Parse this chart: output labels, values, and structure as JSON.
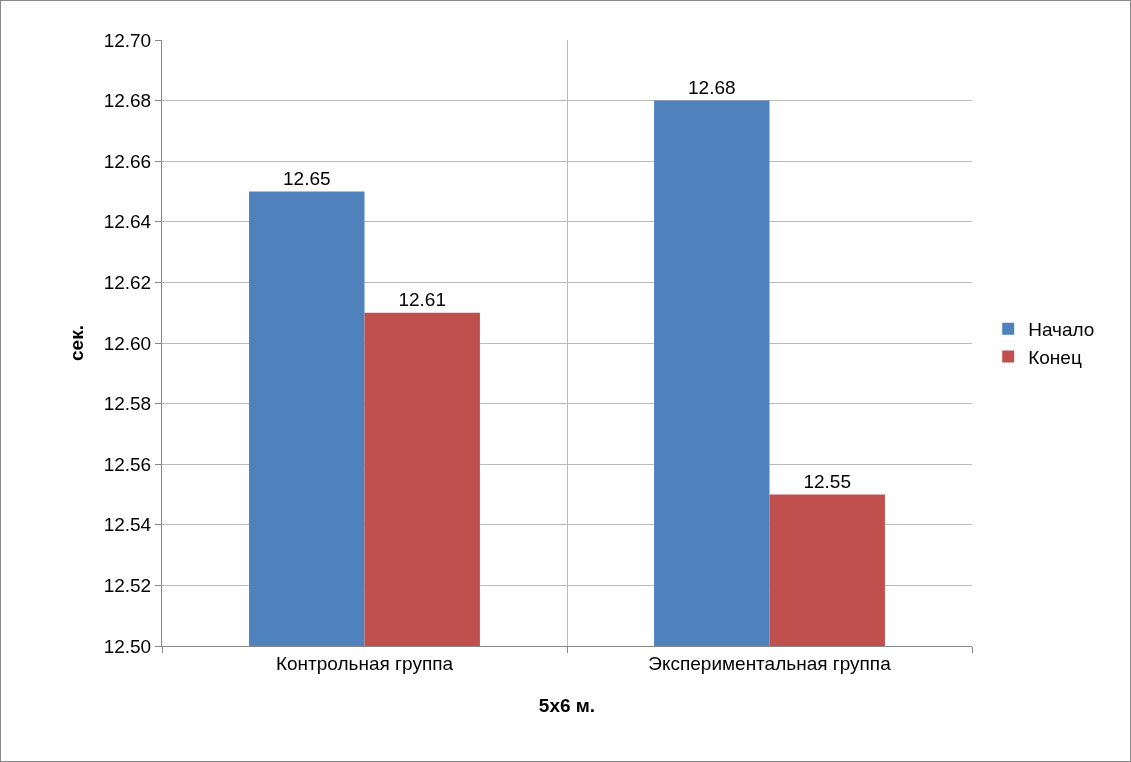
{
  "chart_data": {
    "type": "bar",
    "categories": [
      "Контрольная группа",
      "Экспериментальная группа"
    ],
    "series": [
      {
        "name": "Начало",
        "color": "#4f81bd",
        "values": [
          12.65,
          12.68
        ]
      },
      {
        "name": "Конец",
        "color": "#c0504d",
        "values": [
          12.61,
          12.55
        ]
      }
    ],
    "xlabel": "5x6 м.",
    "ylabel": "сек.",
    "ylim": [
      12.5,
      12.7
    ],
    "yticks": [
      {
        "value": 12.5,
        "label": "12.50"
      },
      {
        "value": 12.52,
        "label": "12.52"
      },
      {
        "value": 12.54,
        "label": "12.54"
      },
      {
        "value": 12.56,
        "label": "12.56"
      },
      {
        "value": 12.58,
        "label": "12.58"
      },
      {
        "value": 12.6,
        "label": "12.60"
      },
      {
        "value": 12.62,
        "label": "12.62"
      },
      {
        "value": 12.64,
        "label": "12.64"
      },
      {
        "value": 12.66,
        "label": "12.66"
      },
      {
        "value": 12.68,
        "label": "12.68"
      },
      {
        "value": 12.7,
        "label": "12.70"
      }
    ],
    "grid": true,
    "legend": "right",
    "data_labels": true
  }
}
